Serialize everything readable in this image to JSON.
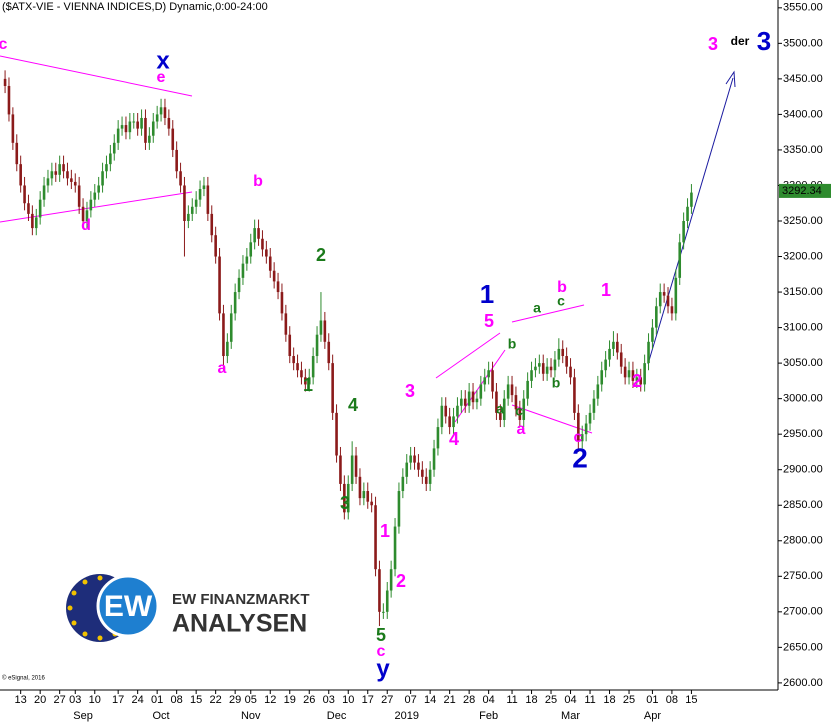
{
  "chart_data": {
    "type": "candlestick",
    "title": "($ATX-VIE - VIENNA INDICES,D) Dynamic,0:00-24:00",
    "up_color": "#2e8b2e",
    "down_color": "#8b1a1a",
    "ylim": [
      2590,
      3561
    ],
    "yticks": [
      {
        "value": 2600,
        "label": "2600.00"
      },
      {
        "value": 2650,
        "label": "2650.00"
      },
      {
        "value": 2700,
        "label": "2700.00"
      },
      {
        "value": 2750,
        "label": "2750.00"
      },
      {
        "value": 2800,
        "label": "2800.00"
      },
      {
        "value": 2850,
        "label": "2850.00"
      },
      {
        "value": 2900,
        "label": "2900.00"
      },
      {
        "value": 2950,
        "label": "2950.00"
      },
      {
        "value": 3000,
        "label": "3000.00"
      },
      {
        "value": 3050,
        "label": "3050.00"
      },
      {
        "value": 3100,
        "label": "3100.00"
      },
      {
        "value": 3150,
        "label": "3150.00"
      },
      {
        "value": 3200,
        "label": "3200.00"
      },
      {
        "value": 3250,
        "label": "3250.00"
      },
      {
        "value": 3300,
        "label": "3300.00"
      },
      {
        "value": 3350,
        "label": "3350.00"
      },
      {
        "value": 3400,
        "label": "3400.00"
      },
      {
        "value": 3450,
        "label": "3450.00"
      },
      {
        "value": 3500,
        "label": "3500.00"
      },
      {
        "value": 3550,
        "label": "3550.00"
      }
    ],
    "xlim": [
      -1.3,
      198.2
    ],
    "xticks": [
      {
        "value": 4,
        "label": "13"
      },
      {
        "value": 9,
        "label": "20"
      },
      {
        "value": 14,
        "label": "27"
      },
      {
        "value": 18,
        "label": "03"
      },
      {
        "value": 23,
        "label": "10"
      },
      {
        "value": 29,
        "label": "17"
      },
      {
        "value": 34,
        "label": "24"
      },
      {
        "value": 39,
        "label": "01"
      },
      {
        "value": 44,
        "label": "08"
      },
      {
        "value": 49,
        "label": "15"
      },
      {
        "value": 54,
        "label": "22"
      },
      {
        "value": 59,
        "label": "29"
      },
      {
        "value": 63,
        "label": "05"
      },
      {
        "value": 68,
        "label": "12"
      },
      {
        "value": 73,
        "label": "19"
      },
      {
        "value": 78,
        "label": "26"
      },
      {
        "value": 83,
        "label": "03"
      },
      {
        "value": 88,
        "label": "10"
      },
      {
        "value": 93,
        "label": "17"
      },
      {
        "value": 98,
        "label": "27"
      },
      {
        "value": 104,
        "label": "07"
      },
      {
        "value": 109,
        "label": "14"
      },
      {
        "value": 114,
        "label": "21"
      },
      {
        "value": 119,
        "label": "28"
      },
      {
        "value": 124,
        "label": "04"
      },
      {
        "value": 130,
        "label": "11"
      },
      {
        "value": 135,
        "label": "18"
      },
      {
        "value": 140,
        "label": "25"
      },
      {
        "value": 145,
        "label": "04"
      },
      {
        "value": 150,
        "label": "11"
      },
      {
        "value": 155,
        "label": "18"
      },
      {
        "value": 160,
        "label": "25"
      },
      {
        "value": 166,
        "label": "01"
      },
      {
        "value": 171,
        "label": "08"
      },
      {
        "value": 176,
        "label": "15"
      }
    ],
    "xmonths": [
      {
        "value": 20,
        "label": "Sep"
      },
      {
        "value": 40,
        "label": "Oct"
      },
      {
        "value": 63,
        "label": "Nov"
      },
      {
        "value": 85,
        "label": "Dec"
      },
      {
        "value": 103,
        "label": "2019"
      },
      {
        "value": 124,
        "label": "Feb"
      },
      {
        "value": 145,
        "label": "Mar"
      },
      {
        "value": 166,
        "label": "Apr"
      }
    ],
    "last_price": 3292.34,
    "ohlc": [
      [
        3450,
        3462,
        3430,
        3440
      ],
      [
        3440,
        3452,
        3390,
        3400
      ],
      [
        3400,
        3410,
        3350,
        3360
      ],
      [
        3360,
        3372,
        3320,
        3330
      ],
      [
        3330,
        3342,
        3290,
        3300
      ],
      [
        3300,
        3312,
        3265,
        3275
      ],
      [
        3275,
        3287,
        3250,
        3260
      ],
      [
        3260,
        3272,
        3230,
        3240
      ],
      [
        3240,
        3267,
        3230,
        3255
      ],
      [
        3255,
        3292,
        3245,
        3280
      ],
      [
        3280,
        3312,
        3270,
        3300
      ],
      [
        3300,
        3322,
        3290,
        3310
      ],
      [
        3310,
        3332,
        3300,
        3320
      ],
      [
        3320,
        3332,
        3305,
        3315
      ],
      [
        3315,
        3342,
        3305,
        3330
      ],
      [
        3330,
        3342,
        3310,
        3320
      ],
      [
        3320,
        3332,
        3300,
        3310
      ],
      [
        3310,
        3322,
        3295,
        3305
      ],
      [
        3305,
        3317,
        3290,
        3300
      ],
      [
        3300,
        3312,
        3260,
        3270
      ],
      [
        3270,
        3282,
        3240,
        3250
      ],
      [
        3250,
        3277,
        3240,
        3265
      ],
      [
        3265,
        3292,
        3255,
        3280
      ],
      [
        3280,
        3302,
        3270,
        3290
      ],
      [
        3290,
        3312,
        3280,
        3300
      ],
      [
        3300,
        3332,
        3290,
        3320
      ],
      [
        3320,
        3342,
        3310,
        3330
      ],
      [
        3330,
        3357,
        3320,
        3345
      ],
      [
        3345,
        3372,
        3335,
        3360
      ],
      [
        3360,
        3392,
        3350,
        3380
      ],
      [
        3380,
        3397,
        3370,
        3385
      ],
      [
        3385,
        3397,
        3365,
        3375
      ],
      [
        3375,
        3402,
        3365,
        3390
      ],
      [
        3390,
        3402,
        3380,
        3390
      ],
      [
        3390,
        3402,
        3370,
        3380
      ],
      [
        3380,
        3407,
        3370,
        3395
      ],
      [
        3395,
        3407,
        3350,
        3360
      ],
      [
        3360,
        3382,
        3350,
        3370
      ],
      [
        3370,
        3402,
        3360,
        3390
      ],
      [
        3390,
        3412,
        3380,
        3400
      ],
      [
        3400,
        3422,
        3390,
        3410
      ],
      [
        3410,
        3422,
        3385,
        3395
      ],
      [
        3395,
        3407,
        3370,
        3380
      ],
      [
        3380,
        3392,
        3340,
        3350
      ],
      [
        3350,
        3362,
        3310,
        3320
      ],
      [
        3320,
        3332,
        3290,
        3300
      ],
      [
        3300,
        3312,
        3200,
        3250
      ],
      [
        3250,
        3272,
        3240,
        3260
      ],
      [
        3260,
        3282,
        3250,
        3270
      ],
      [
        3270,
        3292,
        3260,
        3280
      ],
      [
        3280,
        3307,
        3270,
        3295
      ],
      [
        3295,
        3312,
        3285,
        3300
      ],
      [
        3300,
        3312,
        3250,
        3260
      ],
      [
        3260,
        3272,
        3220,
        3230
      ],
      [
        3230,
        3242,
        3190,
        3200
      ],
      [
        3200,
        3212,
        3110,
        3120
      ],
      [
        3120,
        3132,
        3040,
        3060
      ],
      [
        3060,
        3092,
        3050,
        3080
      ],
      [
        3080,
        3132,
        3070,
        3120
      ],
      [
        3120,
        3162,
        3110,
        3150
      ],
      [
        3150,
        3182,
        3140,
        3170
      ],
      [
        3170,
        3202,
        3160,
        3190
      ],
      [
        3190,
        3212,
        3180,
        3200
      ],
      [
        3200,
        3232,
        3190,
        3220
      ],
      [
        3220,
        3252,
        3210,
        3240
      ],
      [
        3240,
        3252,
        3215,
        3225
      ],
      [
        3225,
        3237,
        3200,
        3210
      ],
      [
        3210,
        3222,
        3190,
        3200
      ],
      [
        3200,
        3212,
        3170,
        3180
      ],
      [
        3180,
        3192,
        3155,
        3165
      ],
      [
        3165,
        3177,
        3140,
        3150
      ],
      [
        3150,
        3162,
        3110,
        3120
      ],
      [
        3120,
        3132,
        3080,
        3090
      ],
      [
        3090,
        3102,
        3050,
        3060
      ],
      [
        3060,
        3072,
        3040,
        3050
      ],
      [
        3050,
        3062,
        3030,
        3040
      ],
      [
        3040,
        3052,
        3020,
        3030
      ],
      [
        3030,
        3042,
        3010,
        3020
      ],
      [
        3020,
        3042,
        3010,
        3030
      ],
      [
        3030,
        3072,
        3020,
        3060
      ],
      [
        3060,
        3102,
        3050,
        3090
      ],
      [
        3090,
        3150,
        3080,
        3110
      ],
      [
        3110,
        3122,
        3070,
        3080
      ],
      [
        3080,
        3092,
        3040,
        3050
      ],
      [
        3050,
        3062,
        2970,
        2980
      ],
      [
        2980,
        2992,
        2910,
        2920
      ],
      [
        2920,
        2932,
        2870,
        2880
      ],
      [
        2880,
        2892,
        2830,
        2840
      ],
      [
        2840,
        2892,
        2830,
        2880
      ],
      [
        2880,
        2940,
        2870,
        2920
      ],
      [
        2920,
        2932,
        2880,
        2890
      ],
      [
        2890,
        2902,
        2850,
        2860
      ],
      [
        2860,
        2882,
        2850,
        2870
      ],
      [
        2870,
        2882,
        2845,
        2855
      ],
      [
        2855,
        2867,
        2840,
        2850
      ],
      [
        2850,
        2862,
        2750,
        2760
      ],
      [
        2760,
        2772,
        2680,
        2700
      ],
      [
        2700,
        2712,
        2690,
        2700
      ],
      [
        2700,
        2742,
        2690,
        2730
      ],
      [
        2730,
        2772,
        2720,
        2760
      ],
      [
        2760,
        2832,
        2750,
        2820
      ],
      [
        2820,
        2882,
        2810,
        2870
      ],
      [
        2870,
        2902,
        2860,
        2890
      ],
      [
        2890,
        2922,
        2880,
        2910
      ],
      [
        2910,
        2932,
        2900,
        2920
      ],
      [
        2920,
        2932,
        2900,
        2910
      ],
      [
        2910,
        2922,
        2890,
        2900
      ],
      [
        2900,
        2912,
        2880,
        2890
      ],
      [
        2890,
        2902,
        2870,
        2880
      ],
      [
        2880,
        2912,
        2870,
        2900
      ],
      [
        2900,
        2942,
        2890,
        2930
      ],
      [
        2930,
        2972,
        2920,
        2960
      ],
      [
        2960,
        3002,
        2950,
        2990
      ],
      [
        2990,
        3002,
        2965,
        2975
      ],
      [
        2975,
        2987,
        2950,
        2960
      ],
      [
        2960,
        2987,
        2950,
        2975
      ],
      [
        2975,
        3002,
        2965,
        2990
      ],
      [
        2990,
        3012,
        2980,
        3000
      ],
      [
        3000,
        3012,
        2980,
        2990
      ],
      [
        2990,
        3022,
        2980,
        3010
      ],
      [
        3010,
        3022,
        2985,
        2995
      ],
      [
        2995,
        3012,
        2985,
        3000
      ],
      [
        3000,
        3032,
        2990,
        3020
      ],
      [
        3020,
        3042,
        3010,
        3030
      ],
      [
        3030,
        3052,
        3020,
        3040
      ],
      [
        3040,
        3052,
        3000,
        3010
      ],
      [
        3010,
        3022,
        2970,
        2980
      ],
      [
        2980,
        2992,
        2960,
        2970
      ],
      [
        2970,
        3012,
        2960,
        3000
      ],
      [
        3000,
        3032,
        2990,
        3020
      ],
      [
        3020,
        3032,
        2995,
        3005
      ],
      [
        3005,
        3017,
        2975,
        2985
      ],
      [
        2985,
        2997,
        2960,
        2970
      ],
      [
        2970,
        3012,
        2960,
        3000
      ],
      [
        3000,
        3037,
        2990,
        3025
      ],
      [
        3025,
        3052,
        3015,
        3040
      ],
      [
        3040,
        3057,
        3030,
        3045
      ],
      [
        3045,
        3062,
        3035,
        3050
      ],
      [
        3050,
        3062,
        3025,
        3035
      ],
      [
        3035,
        3057,
        3025,
        3045
      ],
      [
        3045,
        3057,
        3030,
        3040
      ],
      [
        3040,
        3067,
        3030,
        3055
      ],
      [
        3055,
        3085,
        3045,
        3070
      ],
      [
        3070,
        3082,
        3050,
        3060
      ],
      [
        3060,
        3072,
        3035,
        3045
      ],
      [
        3045,
        3057,
        3020,
        3030
      ],
      [
        3030,
        3042,
        2970,
        2980
      ],
      [
        2980,
        2992,
        2925,
        2940
      ],
      [
        2940,
        2962,
        2930,
        2950
      ],
      [
        2950,
        2977,
        2940,
        2965
      ],
      [
        2965,
        2992,
        2955,
        2980
      ],
      [
        2980,
        3012,
        2970,
        3000
      ],
      [
        3000,
        3032,
        2990,
        3020
      ],
      [
        3020,
        3052,
        3010,
        3040
      ],
      [
        3040,
        3067,
        3030,
        3055
      ],
      [
        3055,
        3082,
        3045,
        3070
      ],
      [
        3070,
        3095,
        3060,
        3080
      ],
      [
        3080,
        3092,
        3055,
        3065
      ],
      [
        3065,
        3077,
        3035,
        3045
      ],
      [
        3045,
        3057,
        3020,
        3030
      ],
      [
        3030,
        3052,
        3020,
        3040
      ],
      [
        3040,
        3052,
        3015,
        3025
      ],
      [
        3025,
        3042,
        3015,
        3030
      ],
      [
        3030,
        3042,
        3010,
        3020
      ],
      [
        3020,
        3062,
        3010,
        3050
      ],
      [
        3050,
        3092,
        3040,
        3080
      ],
      [
        3080,
        3112,
        3070,
        3100
      ],
      [
        3100,
        3142,
        3090,
        3130
      ],
      [
        3130,
        3162,
        3120,
        3150
      ],
      [
        3150,
        3162,
        3135,
        3145
      ],
      [
        3145,
        3157,
        3120,
        3130
      ],
      [
        3130,
        3142,
        3110,
        3120
      ],
      [
        3120,
        3182,
        3110,
        3170
      ],
      [
        3170,
        3232,
        3160,
        3220
      ],
      [
        3220,
        3262,
        3210,
        3250
      ],
      [
        3250,
        3282,
        3240,
        3270
      ],
      [
        3270,
        3302,
        3260,
        3290
      ]
    ],
    "annotations": [
      {
        "text": "c",
        "color": "#ff00ff"
      },
      {
        "text": "x",
        "color": "#0000cc"
      },
      {
        "text": "e",
        "color": "#ff00ff"
      },
      {
        "text": "d",
        "color": "#ff00ff"
      },
      {
        "text": "b",
        "color": "#ff00ff"
      },
      {
        "text": "a",
        "color": "#ff00ff"
      },
      {
        "text": "2",
        "color": "#1a7a1a"
      },
      {
        "text": "1",
        "color": "#1a7a1a"
      },
      {
        "text": "4",
        "color": "#1a7a1a"
      },
      {
        "text": "3",
        "color": "#1a7a1a"
      },
      {
        "text": "5",
        "color": "#1a7a1a"
      },
      {
        "text": "c",
        "color": "#ff00ff"
      },
      {
        "text": "y",
        "color": "#0000cc"
      },
      {
        "text": "1",
        "color": "#ff00ff"
      },
      {
        "text": "2",
        "color": "#ff00ff"
      },
      {
        "text": "3",
        "color": "#ff00ff"
      },
      {
        "text": "4",
        "color": "#ff00ff"
      },
      {
        "text": "5",
        "color": "#ff00ff"
      },
      {
        "text": "1",
        "color": "#0000cc"
      },
      {
        "text": "b",
        "color": "#1a7a1a"
      },
      {
        "text": "a",
        "color": "#1a7a1a"
      },
      {
        "text": "c",
        "color": "#1a7a1a"
      },
      {
        "text": "a",
        "color": "#ff00ff"
      },
      {
        "text": "a",
        "color": "#1a7a1a"
      },
      {
        "text": "c",
        "color": "#1a7a1a"
      },
      {
        "text": "b",
        "color": "#ff00ff"
      },
      {
        "text": "b",
        "color": "#1a7a1a"
      },
      {
        "text": "c",
        "color": "#ff00ff"
      },
      {
        "text": "2",
        "color": "#0000cc"
      },
      {
        "text": "1",
        "color": "#ff00ff"
      },
      {
        "text": "2",
        "color": "#ff00ff"
      },
      {
        "text": "3",
        "color": "#ff00ff"
      },
      {
        "text": "der",
        "color": "#000000"
      },
      {
        "text": "3",
        "color": "#0000cc"
      }
    ]
  },
  "copyright": "© eSignal, 2016",
  "logo": {
    "badge": "EW",
    "line1": "EW FINANZMARKT",
    "line2": "ANALYSEN"
  }
}
